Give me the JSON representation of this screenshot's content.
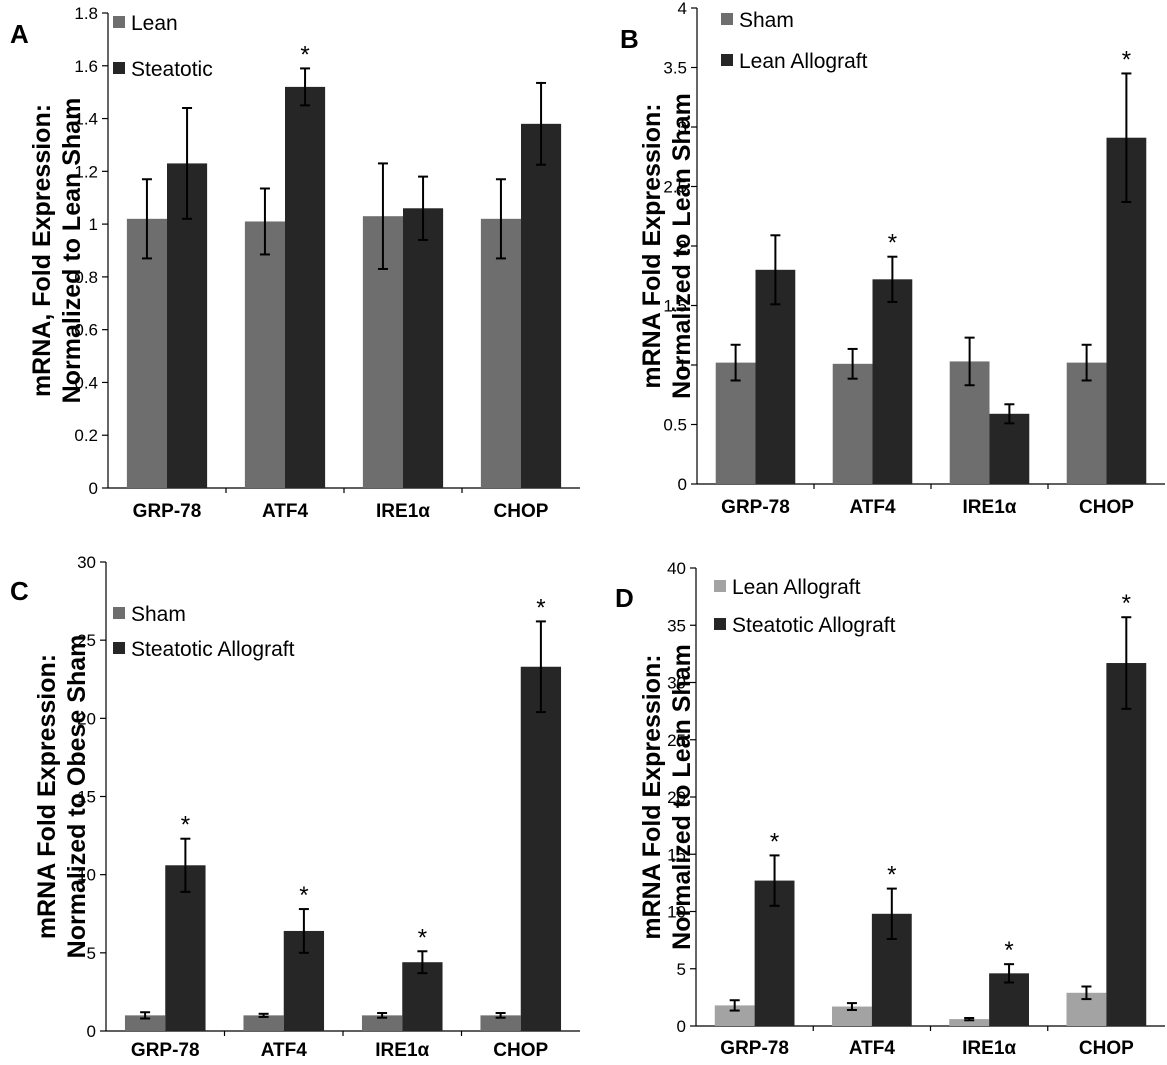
{
  "colors": {
    "lean": "#6e6e6e",
    "dark": "#262626",
    "light": "#a3a3a3",
    "axis": "#000000"
  },
  "chart_data": [
    {
      "panel": "A",
      "type": "bar",
      "ylabel_lines": [
        "mRNA, Fold Expression:",
        "Normalized to Lean Sham"
      ],
      "categories": [
        "GRP-78",
        "ATF4",
        "IRE1α",
        "CHOP"
      ],
      "ylim": [
        0,
        1.8
      ],
      "yticks": [
        "0",
        "0.2",
        "0.4",
        "0.6",
        "0.8",
        "1",
        "1.2",
        "1.4",
        "1.6",
        "1.8"
      ],
      "grid": false,
      "legend_placement": "top-left",
      "series": [
        {
          "name": "Lean",
          "color": "lean",
          "values": [
            1.02,
            1.01,
            1.03,
            1.02
          ],
          "errors": [
            0.15,
            0.125,
            0.2,
            0.15
          ],
          "marks": [
            false,
            false,
            false,
            false
          ]
        },
        {
          "name": "Steatotic",
          "color": "dark",
          "values": [
            1.23,
            1.52,
            1.06,
            1.38
          ],
          "errors": [
            0.21,
            0.07,
            0.12,
            0.155
          ],
          "marks": [
            false,
            true,
            false,
            false
          ]
        }
      ],
      "significance_mark": "*"
    },
    {
      "panel": "B",
      "type": "bar",
      "ylabel_lines": [
        "mRNA Fold Expression:",
        "Normalized to Lean Sham"
      ],
      "categories": [
        "GRP-78",
        "ATF4",
        "IRE1α",
        "CHOP"
      ],
      "ylim": [
        0,
        4
      ],
      "yticks": [
        "0",
        "0.5",
        "1",
        "1.5",
        "2",
        "2.5",
        "3",
        "3.5",
        "4"
      ],
      "grid": false,
      "legend_placement": "top-left",
      "series": [
        {
          "name": "Sham",
          "color": "lean",
          "values": [
            1.02,
            1.01,
            1.03,
            1.02
          ],
          "errors": [
            0.15,
            0.125,
            0.2,
            0.15
          ],
          "marks": [
            false,
            false,
            false,
            false
          ]
        },
        {
          "name": "Lean Allograft",
          "color": "dark",
          "values": [
            1.8,
            1.72,
            0.59,
            2.91
          ],
          "errors": [
            0.29,
            0.19,
            0.08,
            0.54
          ],
          "marks": [
            false,
            true,
            false,
            true
          ]
        }
      ],
      "significance_mark": "*"
    },
    {
      "panel": "C",
      "type": "bar",
      "ylabel_lines": [
        "mRNA Fold Expression:",
        "Normalized to Obese Sham"
      ],
      "categories": [
        "GRP-78",
        "ATF4",
        "IRE1α",
        "CHOP"
      ],
      "ylim": [
        0,
        30
      ],
      "yticks": [
        "0",
        "5",
        "10",
        "15",
        "20",
        "25",
        "30"
      ],
      "grid": false,
      "legend_placement": "top-left",
      "series": [
        {
          "name": "Sham",
          "color": "lean",
          "values": [
            1.0,
            1.0,
            1.0,
            1.0
          ],
          "errors": [
            0.2,
            0.1,
            0.15,
            0.15
          ],
          "marks": [
            false,
            false,
            false,
            false
          ]
        },
        {
          "name": "Steatotic Allograft",
          "color": "dark",
          "values": [
            10.6,
            6.4,
            4.4,
            23.3
          ],
          "errors": [
            1.7,
            1.4,
            0.7,
            2.9
          ],
          "marks": [
            true,
            true,
            true,
            true
          ]
        }
      ],
      "significance_mark": "*"
    },
    {
      "panel": "D",
      "type": "bar",
      "ylabel_lines": [
        "mRNA Fold Expression:",
        "Normalized to Lean Sham"
      ],
      "categories": [
        "GRP-78",
        "ATF4",
        "IRE1α",
        "CHOP"
      ],
      "ylim": [
        0,
        40
      ],
      "yticks": [
        "0",
        "5",
        "10",
        "15",
        "20",
        "25",
        "30",
        "35",
        "40"
      ],
      "grid": false,
      "legend_placement": "top-left",
      "series": [
        {
          "name": "Lean Allograft",
          "color": "light",
          "values": [
            1.8,
            1.7,
            0.6,
            2.9
          ],
          "errors": [
            0.45,
            0.3,
            0.1,
            0.55
          ],
          "marks": [
            false,
            false,
            false,
            false
          ]
        },
        {
          "name": "Steatotic Allograft",
          "color": "dark",
          "values": [
            12.7,
            9.8,
            4.6,
            31.7
          ],
          "errors": [
            2.2,
            2.2,
            0.8,
            4.0
          ],
          "marks": [
            true,
            true,
            true,
            true
          ]
        }
      ],
      "significance_mark": "*"
    }
  ]
}
